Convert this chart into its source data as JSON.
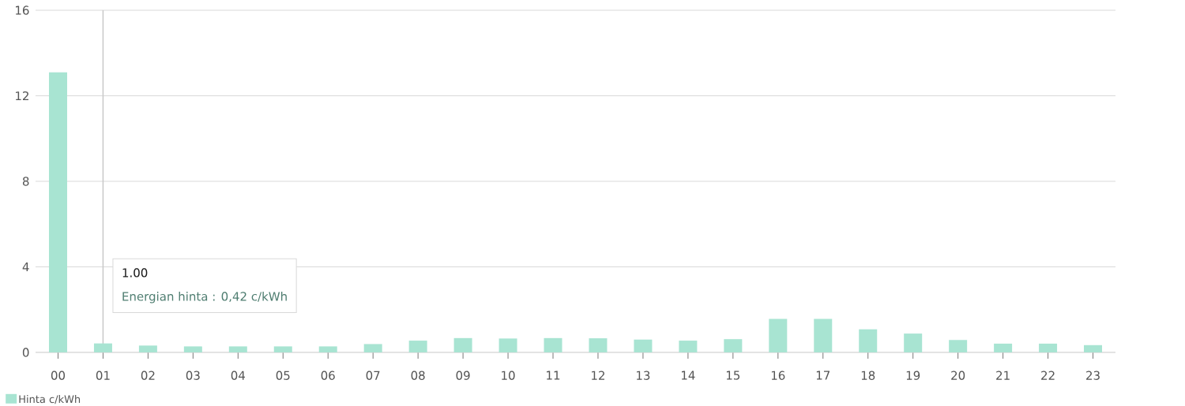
{
  "chart_data": {
    "type": "bar",
    "categories": [
      "00",
      "01",
      "02",
      "03",
      "04",
      "05",
      "06",
      "07",
      "08",
      "09",
      "10",
      "11",
      "12",
      "13",
      "14",
      "15",
      "16",
      "17",
      "18",
      "19",
      "20",
      "21",
      "22",
      "23"
    ],
    "series": [
      {
        "name": "Hinta c/kWh",
        "color": "#a8e4d2",
        "values": [
          13.1,
          0.42,
          0.32,
          0.28,
          0.28,
          0.28,
          0.28,
          0.39,
          0.55,
          0.67,
          0.65,
          0.67,
          0.66,
          0.6,
          0.55,
          0.62,
          1.57,
          1.57,
          1.08,
          0.88,
          0.58,
          0.41,
          0.41,
          0.34
        ]
      }
    ],
    "ylim": [
      0,
      16
    ],
    "yticks": [
      0,
      4,
      8,
      12,
      16
    ],
    "grid": "y",
    "legend": "bottom left",
    "ref_lines": [
      {
        "axis": "x",
        "value": "01",
        "color": "#c8c8c8"
      }
    ],
    "annotations": [
      "1.00",
      "Energian hinta : 0,42 c/kWh"
    ]
  }
}
